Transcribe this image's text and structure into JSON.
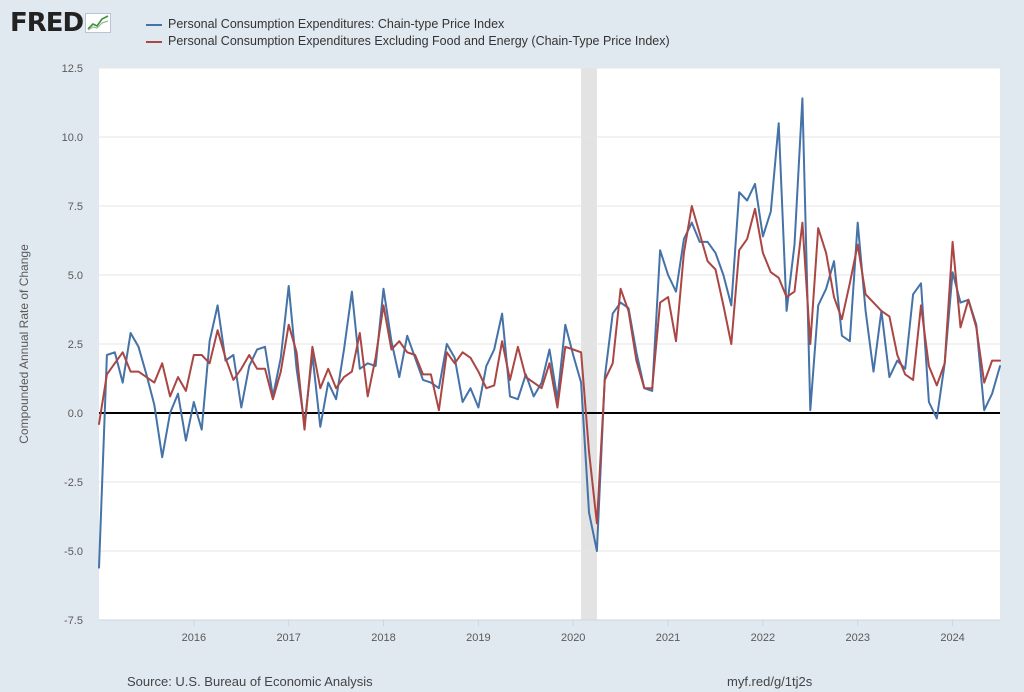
{
  "header": {
    "logo_text": "FRED",
    "logo_icon": "fred-trend-graph-icon"
  },
  "footer": {
    "source": "Source: U.S. Bureau of Economic Analysis",
    "shortlink": "myf.red/g/1tj2s"
  },
  "colors": {
    "page_background": "#e1e9f0",
    "plot_background": "#ffffff",
    "recession_band": "#e3e3e3",
    "zero_line": "#000000"
  },
  "chart_data": {
    "type": "line",
    "title": "",
    "xlabel": "",
    "ylabel": "Compounded Annual Rate of Change",
    "ylim": [
      -7.5,
      12.5
    ],
    "yticks": [
      12.5,
      10.0,
      7.5,
      5.0,
      2.5,
      0.0,
      -2.5,
      -5.0,
      -7.5
    ],
    "ytick_labels": [
      "12.5",
      "10.0",
      "7.5",
      "5.0",
      "2.5",
      "0.0",
      "-2.5",
      "-5.0",
      "-7.5"
    ],
    "xlim": [
      "2015-01",
      "2024-07"
    ],
    "xticks": [
      "2016-01",
      "2017-01",
      "2018-01",
      "2019-01",
      "2020-01",
      "2021-01",
      "2022-01",
      "2023-01",
      "2024-01"
    ],
    "xtick_labels": [
      "2016",
      "2017",
      "2018",
      "2019",
      "2020",
      "2021",
      "2022",
      "2023",
      "2024"
    ],
    "grid": "horizontal",
    "legend": "top-left",
    "zero_line": 0,
    "recession": {
      "start": "2020-02",
      "end": "2020-04"
    },
    "series": [
      {
        "name": "Personal Consumption Expenditures: Chain-type Price Index",
        "color": "#4572a7",
        "points": [
          [
            "2015-01",
            -5.6
          ],
          [
            "2015-02",
            2.1
          ],
          [
            "2015-03",
            2.2
          ],
          [
            "2015-04",
            1.1
          ],
          [
            "2015-05",
            2.9
          ],
          [
            "2015-06",
            2.4
          ],
          [
            "2015-07",
            1.4
          ],
          [
            "2015-08",
            0.3
          ],
          [
            "2015-09",
            -1.6
          ],
          [
            "2015-10",
            0.0
          ],
          [
            "2015-11",
            0.7
          ],
          [
            "2015-12",
            -1.0
          ],
          [
            "2016-01",
            0.4
          ],
          [
            "2016-02",
            -0.6
          ],
          [
            "2016-03",
            2.6
          ],
          [
            "2016-04",
            3.9
          ],
          [
            "2016-05",
            1.9
          ],
          [
            "2016-06",
            2.1
          ],
          [
            "2016-07",
            0.2
          ],
          [
            "2016-08",
            1.7
          ],
          [
            "2016-09",
            2.3
          ],
          [
            "2016-10",
            2.4
          ],
          [
            "2016-11",
            0.6
          ],
          [
            "2016-12",
            2.0
          ],
          [
            "2017-01",
            4.6
          ],
          [
            "2017-02",
            1.6
          ],
          [
            "2017-03",
            -0.4
          ],
          [
            "2017-04",
            2.1
          ],
          [
            "2017-05",
            -0.5
          ],
          [
            "2017-06",
            1.1
          ],
          [
            "2017-07",
            0.5
          ],
          [
            "2017-08",
            2.3
          ],
          [
            "2017-09",
            4.4
          ],
          [
            "2017-10",
            1.6
          ],
          [
            "2017-11",
            1.8
          ],
          [
            "2017-12",
            1.7
          ],
          [
            "2018-01",
            4.5
          ],
          [
            "2018-02",
            2.6
          ],
          [
            "2018-03",
            1.3
          ],
          [
            "2018-04",
            2.8
          ],
          [
            "2018-05",
            2.0
          ],
          [
            "2018-06",
            1.2
          ],
          [
            "2018-07",
            1.1
          ],
          [
            "2018-08",
            0.9
          ],
          [
            "2018-09",
            2.5
          ],
          [
            "2018-10",
            2.0
          ],
          [
            "2018-11",
            0.4
          ],
          [
            "2018-12",
            0.9
          ],
          [
            "2019-01",
            0.2
          ],
          [
            "2019-02",
            1.7
          ],
          [
            "2019-03",
            2.3
          ],
          [
            "2019-04",
            3.6
          ],
          [
            "2019-05",
            0.6
          ],
          [
            "2019-06",
            0.5
          ],
          [
            "2019-07",
            1.4
          ],
          [
            "2019-08",
            0.6
          ],
          [
            "2019-09",
            1.1
          ],
          [
            "2019-10",
            2.3
          ],
          [
            "2019-11",
            0.5
          ],
          [
            "2019-12",
            3.2
          ],
          [
            "2020-01",
            2.1
          ],
          [
            "2020-02",
            1.1
          ],
          [
            "2020-03",
            -3.6
          ],
          [
            "2020-04",
            -5.0
          ],
          [
            "2020-05",
            1.3
          ],
          [
            "2020-06",
            3.6
          ],
          [
            "2020-07",
            4.0
          ],
          [
            "2020-08",
            3.8
          ],
          [
            "2020-09",
            2.2
          ],
          [
            "2020-10",
            0.9
          ],
          [
            "2020-11",
            0.8
          ],
          [
            "2020-12",
            5.9
          ],
          [
            "2021-01",
            5.0
          ],
          [
            "2021-02",
            4.4
          ],
          [
            "2021-03",
            6.3
          ],
          [
            "2021-04",
            6.9
          ],
          [
            "2021-05",
            6.2
          ],
          [
            "2021-06",
            6.2
          ],
          [
            "2021-07",
            5.8
          ],
          [
            "2021-08",
            5.0
          ],
          [
            "2021-09",
            3.9
          ],
          [
            "2021-10",
            8.0
          ],
          [
            "2021-11",
            7.7
          ],
          [
            "2021-12",
            8.3
          ],
          [
            "2022-01",
            6.4
          ],
          [
            "2022-02",
            7.3
          ],
          [
            "2022-03",
            10.5
          ],
          [
            "2022-04",
            3.7
          ],
          [
            "2022-05",
            6.1
          ],
          [
            "2022-06",
            11.4
          ],
          [
            "2022-07",
            0.1
          ],
          [
            "2022-08",
            3.9
          ],
          [
            "2022-09",
            4.5
          ],
          [
            "2022-10",
            5.5
          ],
          [
            "2022-11",
            2.8
          ],
          [
            "2022-12",
            2.6
          ],
          [
            "2023-01",
            6.9
          ],
          [
            "2023-02",
            3.7
          ],
          [
            "2023-03",
            1.5
          ],
          [
            "2023-04",
            3.7
          ],
          [
            "2023-05",
            1.3
          ],
          [
            "2023-06",
            1.9
          ],
          [
            "2023-07",
            1.6
          ],
          [
            "2023-08",
            4.3
          ],
          [
            "2023-09",
            4.7
          ],
          [
            "2023-10",
            0.4
          ],
          [
            "2023-11",
            -0.2
          ],
          [
            "2023-12",
            1.8
          ],
          [
            "2024-01",
            5.1
          ],
          [
            "2024-02",
            4.0
          ],
          [
            "2024-03",
            4.1
          ],
          [
            "2024-04",
            3.2
          ],
          [
            "2024-05",
            0.1
          ],
          [
            "2024-06",
            0.7
          ],
          [
            "2024-07",
            1.7
          ]
        ]
      },
      {
        "name": "Personal Consumption Expenditures Excluding Food and Energy (Chain-Type Price Index)",
        "color": "#aa4643",
        "points": [
          [
            "2015-01",
            -0.4
          ],
          [
            "2015-02",
            1.4
          ],
          [
            "2015-03",
            1.8
          ],
          [
            "2015-04",
            2.2
          ],
          [
            "2015-05",
            1.5
          ],
          [
            "2015-06",
            1.5
          ],
          [
            "2015-07",
            1.3
          ],
          [
            "2015-08",
            1.1
          ],
          [
            "2015-09",
            1.8
          ],
          [
            "2015-10",
            0.6
          ],
          [
            "2015-11",
            1.3
          ],
          [
            "2015-12",
            0.8
          ],
          [
            "2016-01",
            2.1
          ],
          [
            "2016-02",
            2.1
          ],
          [
            "2016-03",
            1.8
          ],
          [
            "2016-04",
            3.0
          ],
          [
            "2016-05",
            2.0
          ],
          [
            "2016-06",
            1.2
          ],
          [
            "2016-07",
            1.6
          ],
          [
            "2016-08",
            2.1
          ],
          [
            "2016-09",
            1.6
          ],
          [
            "2016-10",
            1.6
          ],
          [
            "2016-11",
            0.5
          ],
          [
            "2016-12",
            1.5
          ],
          [
            "2017-01",
            3.2
          ],
          [
            "2017-02",
            2.2
          ],
          [
            "2017-03",
            -0.6
          ],
          [
            "2017-04",
            2.4
          ],
          [
            "2017-05",
            0.9
          ],
          [
            "2017-06",
            1.6
          ],
          [
            "2017-07",
            0.9
          ],
          [
            "2017-08",
            1.3
          ],
          [
            "2017-09",
            1.5
          ],
          [
            "2017-10",
            2.9
          ],
          [
            "2017-11",
            0.6
          ],
          [
            "2017-12",
            2.0
          ],
          [
            "2018-01",
            3.9
          ],
          [
            "2018-02",
            2.3
          ],
          [
            "2018-03",
            2.6
          ],
          [
            "2018-04",
            2.2
          ],
          [
            "2018-05",
            2.1
          ],
          [
            "2018-06",
            1.4
          ],
          [
            "2018-07",
            1.4
          ],
          [
            "2018-08",
            0.1
          ],
          [
            "2018-09",
            2.2
          ],
          [
            "2018-10",
            1.8
          ],
          [
            "2018-11",
            2.2
          ],
          [
            "2018-12",
            2.0
          ],
          [
            "2019-01",
            1.5
          ],
          [
            "2019-02",
            0.9
          ],
          [
            "2019-03",
            1.0
          ],
          [
            "2019-04",
            2.6
          ],
          [
            "2019-05",
            1.2
          ],
          [
            "2019-06",
            2.4
          ],
          [
            "2019-07",
            1.3
          ],
          [
            "2019-08",
            1.1
          ],
          [
            "2019-09",
            0.9
          ],
          [
            "2019-10",
            1.8
          ],
          [
            "2019-11",
            0.2
          ],
          [
            "2019-12",
            2.4
          ],
          [
            "2020-01",
            2.3
          ],
          [
            "2020-02",
            2.2
          ],
          [
            "2020-03",
            -1.4
          ],
          [
            "2020-04",
            -4.0
          ],
          [
            "2020-05",
            1.2
          ],
          [
            "2020-06",
            1.8
          ],
          [
            "2020-07",
            4.5
          ],
          [
            "2020-08",
            3.7
          ],
          [
            "2020-09",
            1.9
          ],
          [
            "2020-10",
            0.9
          ],
          [
            "2020-11",
            0.9
          ],
          [
            "2020-12",
            4.0
          ],
          [
            "2021-01",
            4.2
          ],
          [
            "2021-02",
            2.6
          ],
          [
            "2021-03",
            5.8
          ],
          [
            "2021-04",
            7.5
          ],
          [
            "2021-05",
            6.5
          ],
          [
            "2021-06",
            5.5
          ],
          [
            "2021-07",
            5.2
          ],
          [
            "2021-08",
            3.9
          ],
          [
            "2021-09",
            2.5
          ],
          [
            "2021-10",
            5.9
          ],
          [
            "2021-11",
            6.3
          ],
          [
            "2021-12",
            7.4
          ],
          [
            "2022-01",
            5.8
          ],
          [
            "2022-02",
            5.1
          ],
          [
            "2022-03",
            4.9
          ],
          [
            "2022-04",
            4.2
          ],
          [
            "2022-05",
            4.4
          ],
          [
            "2022-06",
            6.9
          ],
          [
            "2022-07",
            2.5
          ],
          [
            "2022-08",
            6.7
          ],
          [
            "2022-09",
            5.8
          ],
          [
            "2022-10",
            4.2
          ],
          [
            "2022-11",
            3.4
          ],
          [
            "2022-12",
            4.7
          ],
          [
            "2023-01",
            6.1
          ],
          [
            "2023-02",
            4.3
          ],
          [
            "2023-03",
            4.0
          ],
          [
            "2023-04",
            3.7
          ],
          [
            "2023-05",
            3.5
          ],
          [
            "2023-06",
            2.1
          ],
          [
            "2023-07",
            1.4
          ],
          [
            "2023-08",
            1.2
          ],
          [
            "2023-09",
            3.9
          ],
          [
            "2023-10",
            1.7
          ],
          [
            "2023-11",
            1.0
          ],
          [
            "2023-12",
            1.8
          ],
          [
            "2024-01",
            6.2
          ],
          [
            "2024-02",
            3.1
          ],
          [
            "2024-03",
            4.1
          ],
          [
            "2024-04",
            3.1
          ],
          [
            "2024-05",
            1.1
          ],
          [
            "2024-06",
            1.9
          ],
          [
            "2024-07",
            1.9
          ]
        ]
      }
    ]
  }
}
